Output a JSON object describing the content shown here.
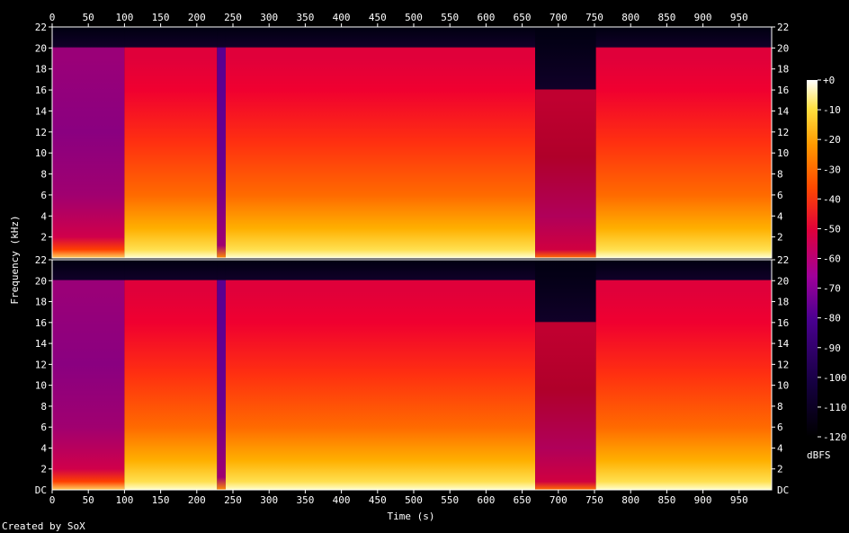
{
  "chart_data": {
    "type": "heatmap",
    "xlabel": "Time (s)",
    "ylabel": "Frequency (kHz)",
    "xlim": [
      0,
      995
    ],
    "ylim": [
      0,
      22
    ],
    "x_ticks": [
      0,
      50,
      100,
      150,
      200,
      250,
      300,
      350,
      400,
      450,
      500,
      550,
      600,
      650,
      700,
      750,
      800,
      850,
      900,
      950
    ],
    "y_ticks": [
      2,
      4,
      6,
      8,
      10,
      12,
      14,
      16,
      18,
      20,
      22
    ],
    "y_tick_labels_bottom": [
      "DC",
      "2",
      "4",
      "6",
      "8",
      "10",
      "12",
      "14",
      "16",
      "18",
      "20",
      "22"
    ],
    "channels": 2,
    "colorbar": {
      "label": "dBFS",
      "ticks": [
        0,
        -10,
        -20,
        -30,
        -40,
        -50,
        -60,
        -70,
        -80,
        -90,
        -100,
        -110,
        -120
      ],
      "tick_labels": [
        "+0",
        "-10",
        "-20",
        "-30",
        "-40",
        "-50",
        "-60",
        "-70",
        "-80",
        "-90",
        "-100",
        "-110",
        "-120"
      ],
      "range": [
        -120,
        0
      ]
    },
    "segments": [
      {
        "t": [
          0,
          100
        ],
        "cutoff_khz": 20,
        "level": "low"
      },
      {
        "t": [
          100,
          228
        ],
        "cutoff_khz": 20,
        "level": "high"
      },
      {
        "t": [
          228,
          240
        ],
        "cutoff_khz": 20,
        "level": "dip"
      },
      {
        "t": [
          240,
          668
        ],
        "cutoff_khz": 20,
        "level": "high"
      },
      {
        "t": [
          668,
          752
        ],
        "cutoff_khz": 16,
        "level": "quiet"
      },
      {
        "t": [
          752,
          995
        ],
        "cutoff_khz": 20,
        "level": "high"
      }
    ]
  },
  "credit": "Created by SoX"
}
